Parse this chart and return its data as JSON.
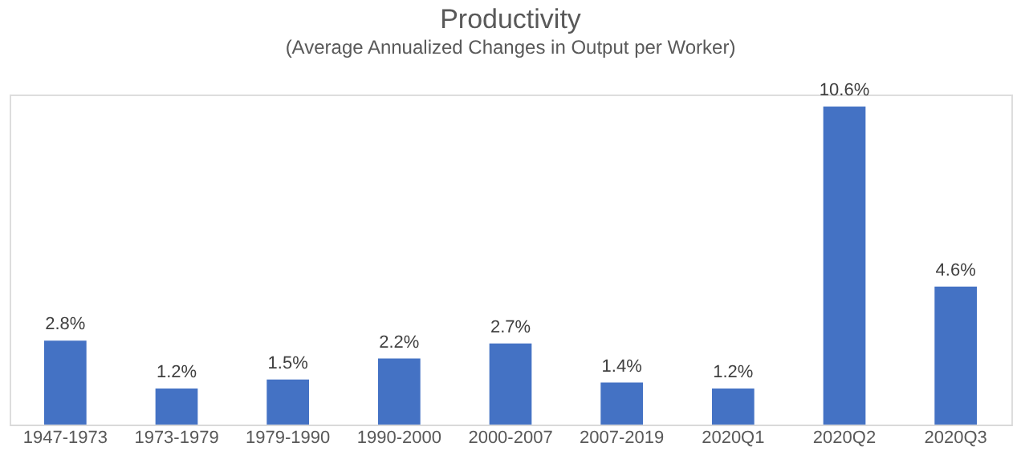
{
  "chart_data": {
    "type": "bar",
    "title": "Productivity",
    "subtitle": "(Average Annualized Changes in Output per Worker)",
    "categories": [
      "1947-1973",
      "1973-1979",
      "1979-1990",
      "1990-2000",
      "2000-2007",
      "2007-2019",
      "2020Q1",
      "2020Q2",
      "2020Q3"
    ],
    "values": [
      2.8,
      1.2,
      1.5,
      2.2,
      2.7,
      1.4,
      1.2,
      10.6,
      4.6
    ],
    "value_labels": [
      "2.8%",
      "1.2%",
      "1.5%",
      "2.2%",
      "2.7%",
      "1.4%",
      "1.2%",
      "10.6%",
      "4.6%"
    ],
    "color": "#4472c4",
    "grid": false
  }
}
